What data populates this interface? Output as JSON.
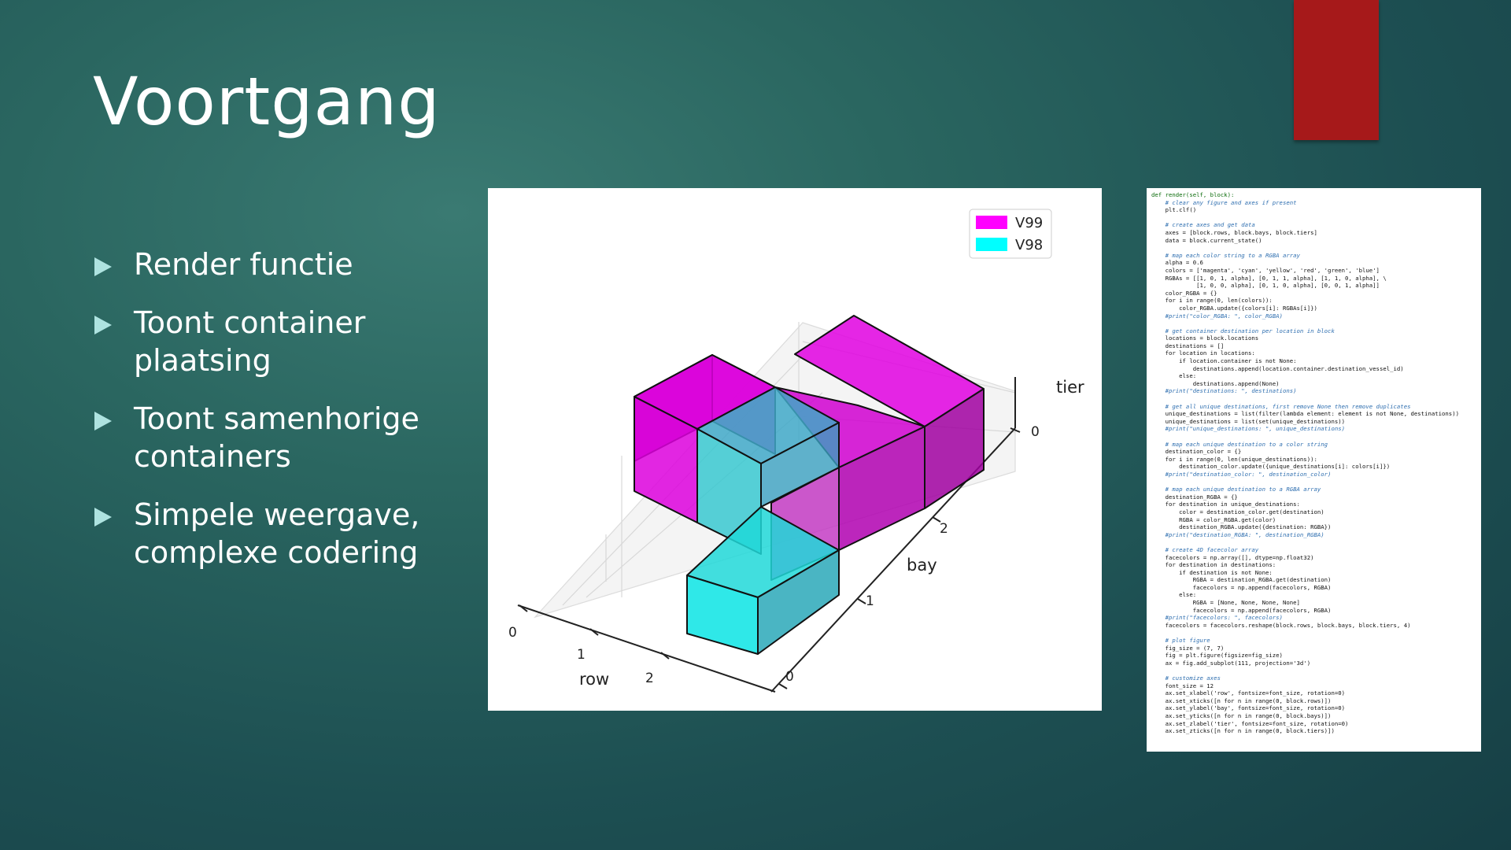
{
  "slide": {
    "title": "Voortgang",
    "accent_color": "#a6191a",
    "bullet_color": "#aee3e0"
  },
  "bullets": [
    {
      "text": "Render functie"
    },
    {
      "text": "Toont container\nplaatsing"
    },
    {
      "text": "Toont samenhorige\ncontainers"
    },
    {
      "text": "Simpele weergave,\ncomplexe codering"
    }
  ],
  "chart_data": {
    "type": "3d-bar",
    "legend": [
      {
        "label": "V99",
        "color": "#ff00ff"
      },
      {
        "label": "V98",
        "color": "#00ffff"
      }
    ],
    "xlabel": "row",
    "ylabel": "bay",
    "zlabel": "tier",
    "xticks": [
      "0",
      "1",
      "2"
    ],
    "yticks": [
      "0",
      "1",
      "2"
    ],
    "zticks": [
      "0"
    ],
    "legend_position": "top-right"
  },
  "code": {
    "lines": [
      {
        "text": "def render(self, block):",
        "kind": "keyword"
      },
      {
        "text": "    # clear any figure and axes if present",
        "kind": "comment"
      },
      {
        "text": "    plt.clf()",
        "kind": "code"
      },
      {
        "text": "",
        "kind": "code"
      },
      {
        "text": "    # create axes and get data",
        "kind": "comment"
      },
      {
        "text": "    axes = [block.rows, block.bays, block.tiers]",
        "kind": "code"
      },
      {
        "text": "    data = block.current_state()",
        "kind": "code"
      },
      {
        "text": "",
        "kind": "code"
      },
      {
        "text": "    # map each color string to a RGBA array",
        "kind": "comment"
      },
      {
        "text": "    alpha = 0.6",
        "kind": "code"
      },
      {
        "text": "    colors = ['magenta', 'cyan', 'yellow', 'red', 'green', 'blue']",
        "kind": "code"
      },
      {
        "text": "    RGBAs = [[1, 0, 1, alpha], [0, 1, 1, alpha], [1, 1, 0, alpha], \\",
        "kind": "code"
      },
      {
        "text": "             [1, 0, 0, alpha], [0, 1, 0, alpha], [0, 0, 1, alpha]]",
        "kind": "code"
      },
      {
        "text": "    color_RGBA = {}",
        "kind": "code"
      },
      {
        "text": "    for i in range(0, len(colors)):",
        "kind": "code"
      },
      {
        "text": "        color_RGBA.update({colors[i]: RGBAs[i]})",
        "kind": "code"
      },
      {
        "text": "    #print(\"color_RGBA: \", color_RGBA)",
        "kind": "comment"
      },
      {
        "text": "",
        "kind": "code"
      },
      {
        "text": "    # get container destination per location in block",
        "kind": "comment"
      },
      {
        "text": "    locations = block.locations",
        "kind": "code"
      },
      {
        "text": "    destinations = []",
        "kind": "code"
      },
      {
        "text": "    for location in locations:",
        "kind": "code"
      },
      {
        "text": "        if location.container is not None:",
        "kind": "code"
      },
      {
        "text": "            destinations.append(location.container.destination_vessel_id)",
        "kind": "code"
      },
      {
        "text": "        else:",
        "kind": "code"
      },
      {
        "text": "            destinations.append(None)",
        "kind": "code"
      },
      {
        "text": "    #print(\"destinations: \", destinations)",
        "kind": "comment"
      },
      {
        "text": "",
        "kind": "code"
      },
      {
        "text": "    # get all unique destinations, first remove None then remove duplicates",
        "kind": "comment"
      },
      {
        "text": "    unique_destinations = list(filter(lambda element: element is not None, destinations))",
        "kind": "code"
      },
      {
        "text": "    unique_destinations = list(set(unique_destinations))",
        "kind": "code"
      },
      {
        "text": "    #print(\"unique_destinations: \", unique_destinations)",
        "kind": "comment"
      },
      {
        "text": "",
        "kind": "code"
      },
      {
        "text": "    # map each unique destination to a color string",
        "kind": "comment"
      },
      {
        "text": "    destination_color = {}",
        "kind": "code"
      },
      {
        "text": "    for i in range(0, len(unique_destinations)):",
        "kind": "code"
      },
      {
        "text": "        destination_color.update({unique_destinations[i]: colors[i]})",
        "kind": "code"
      },
      {
        "text": "    #print(\"destination_color: \", destination_color)",
        "kind": "comment"
      },
      {
        "text": "",
        "kind": "code"
      },
      {
        "text": "    # map each unique destination to a RGBA array",
        "kind": "comment"
      },
      {
        "text": "    destination_RGBA = {}",
        "kind": "code"
      },
      {
        "text": "    for destination in unique_destinations:",
        "kind": "code"
      },
      {
        "text": "        color = destination_color.get(destination)",
        "kind": "code"
      },
      {
        "text": "        RGBA = color_RGBA.get(color)",
        "kind": "code"
      },
      {
        "text": "        destination_RGBA.update({destination: RGBA})",
        "kind": "code"
      },
      {
        "text": "    #print(\"destination_RGBA: \", destination_RGBA)",
        "kind": "comment"
      },
      {
        "text": "",
        "kind": "code"
      },
      {
        "text": "    # create 4D facecolor array",
        "kind": "comment"
      },
      {
        "text": "    facecolors = np.array([], dtype=np.float32)",
        "kind": "code"
      },
      {
        "text": "    for destination in destinations:",
        "kind": "code"
      },
      {
        "text": "        if destination is not None:",
        "kind": "code"
      },
      {
        "text": "            RGBA = destination_RGBA.get(destination)",
        "kind": "code"
      },
      {
        "text": "            facecolors = np.append(facecolors, RGBA)",
        "kind": "code"
      },
      {
        "text": "        else:",
        "kind": "code"
      },
      {
        "text": "            RGBA = [None, None, None, None]",
        "kind": "code"
      },
      {
        "text": "            facecolors = np.append(facecolors, RGBA)",
        "kind": "code"
      },
      {
        "text": "    #print(\"facecolors: \", facecolors)",
        "kind": "comment"
      },
      {
        "text": "    facecolors = facecolors.reshape(block.rows, block.bays, block.tiers, 4)",
        "kind": "code"
      },
      {
        "text": "",
        "kind": "code"
      },
      {
        "text": "    # plot figure",
        "kind": "comment"
      },
      {
        "text": "    fig_size = (7, 7)",
        "kind": "code"
      },
      {
        "text": "    fig = plt.figure(figsize=fig_size)",
        "kind": "code"
      },
      {
        "text": "    ax = fig.add_subplot(111, projection='3d')",
        "kind": "code"
      },
      {
        "text": "",
        "kind": "code"
      },
      {
        "text": "    # customize axes",
        "kind": "comment"
      },
      {
        "text": "    font_size = 12",
        "kind": "code"
      },
      {
        "text": "    ax.set_xlabel('row', fontsize=font_size, rotation=0)",
        "kind": "code"
      },
      {
        "text": "    ax.set_xticks([n for n in range(0, block.rows)])",
        "kind": "code"
      },
      {
        "text": "    ax.set_ylabel('bay', fontsize=font_size, rotation=0)",
        "kind": "code"
      },
      {
        "text": "    ax.set_yticks([n for n in range(0, block.bays)])",
        "kind": "code"
      },
      {
        "text": "    ax.set_zlabel('tier', fontsize=font_size, rotation=0)",
        "kind": "code"
      },
      {
        "text": "    ax.set_zticks([n for n in range(0, block.tiers)])",
        "kind": "code"
      }
    ]
  }
}
